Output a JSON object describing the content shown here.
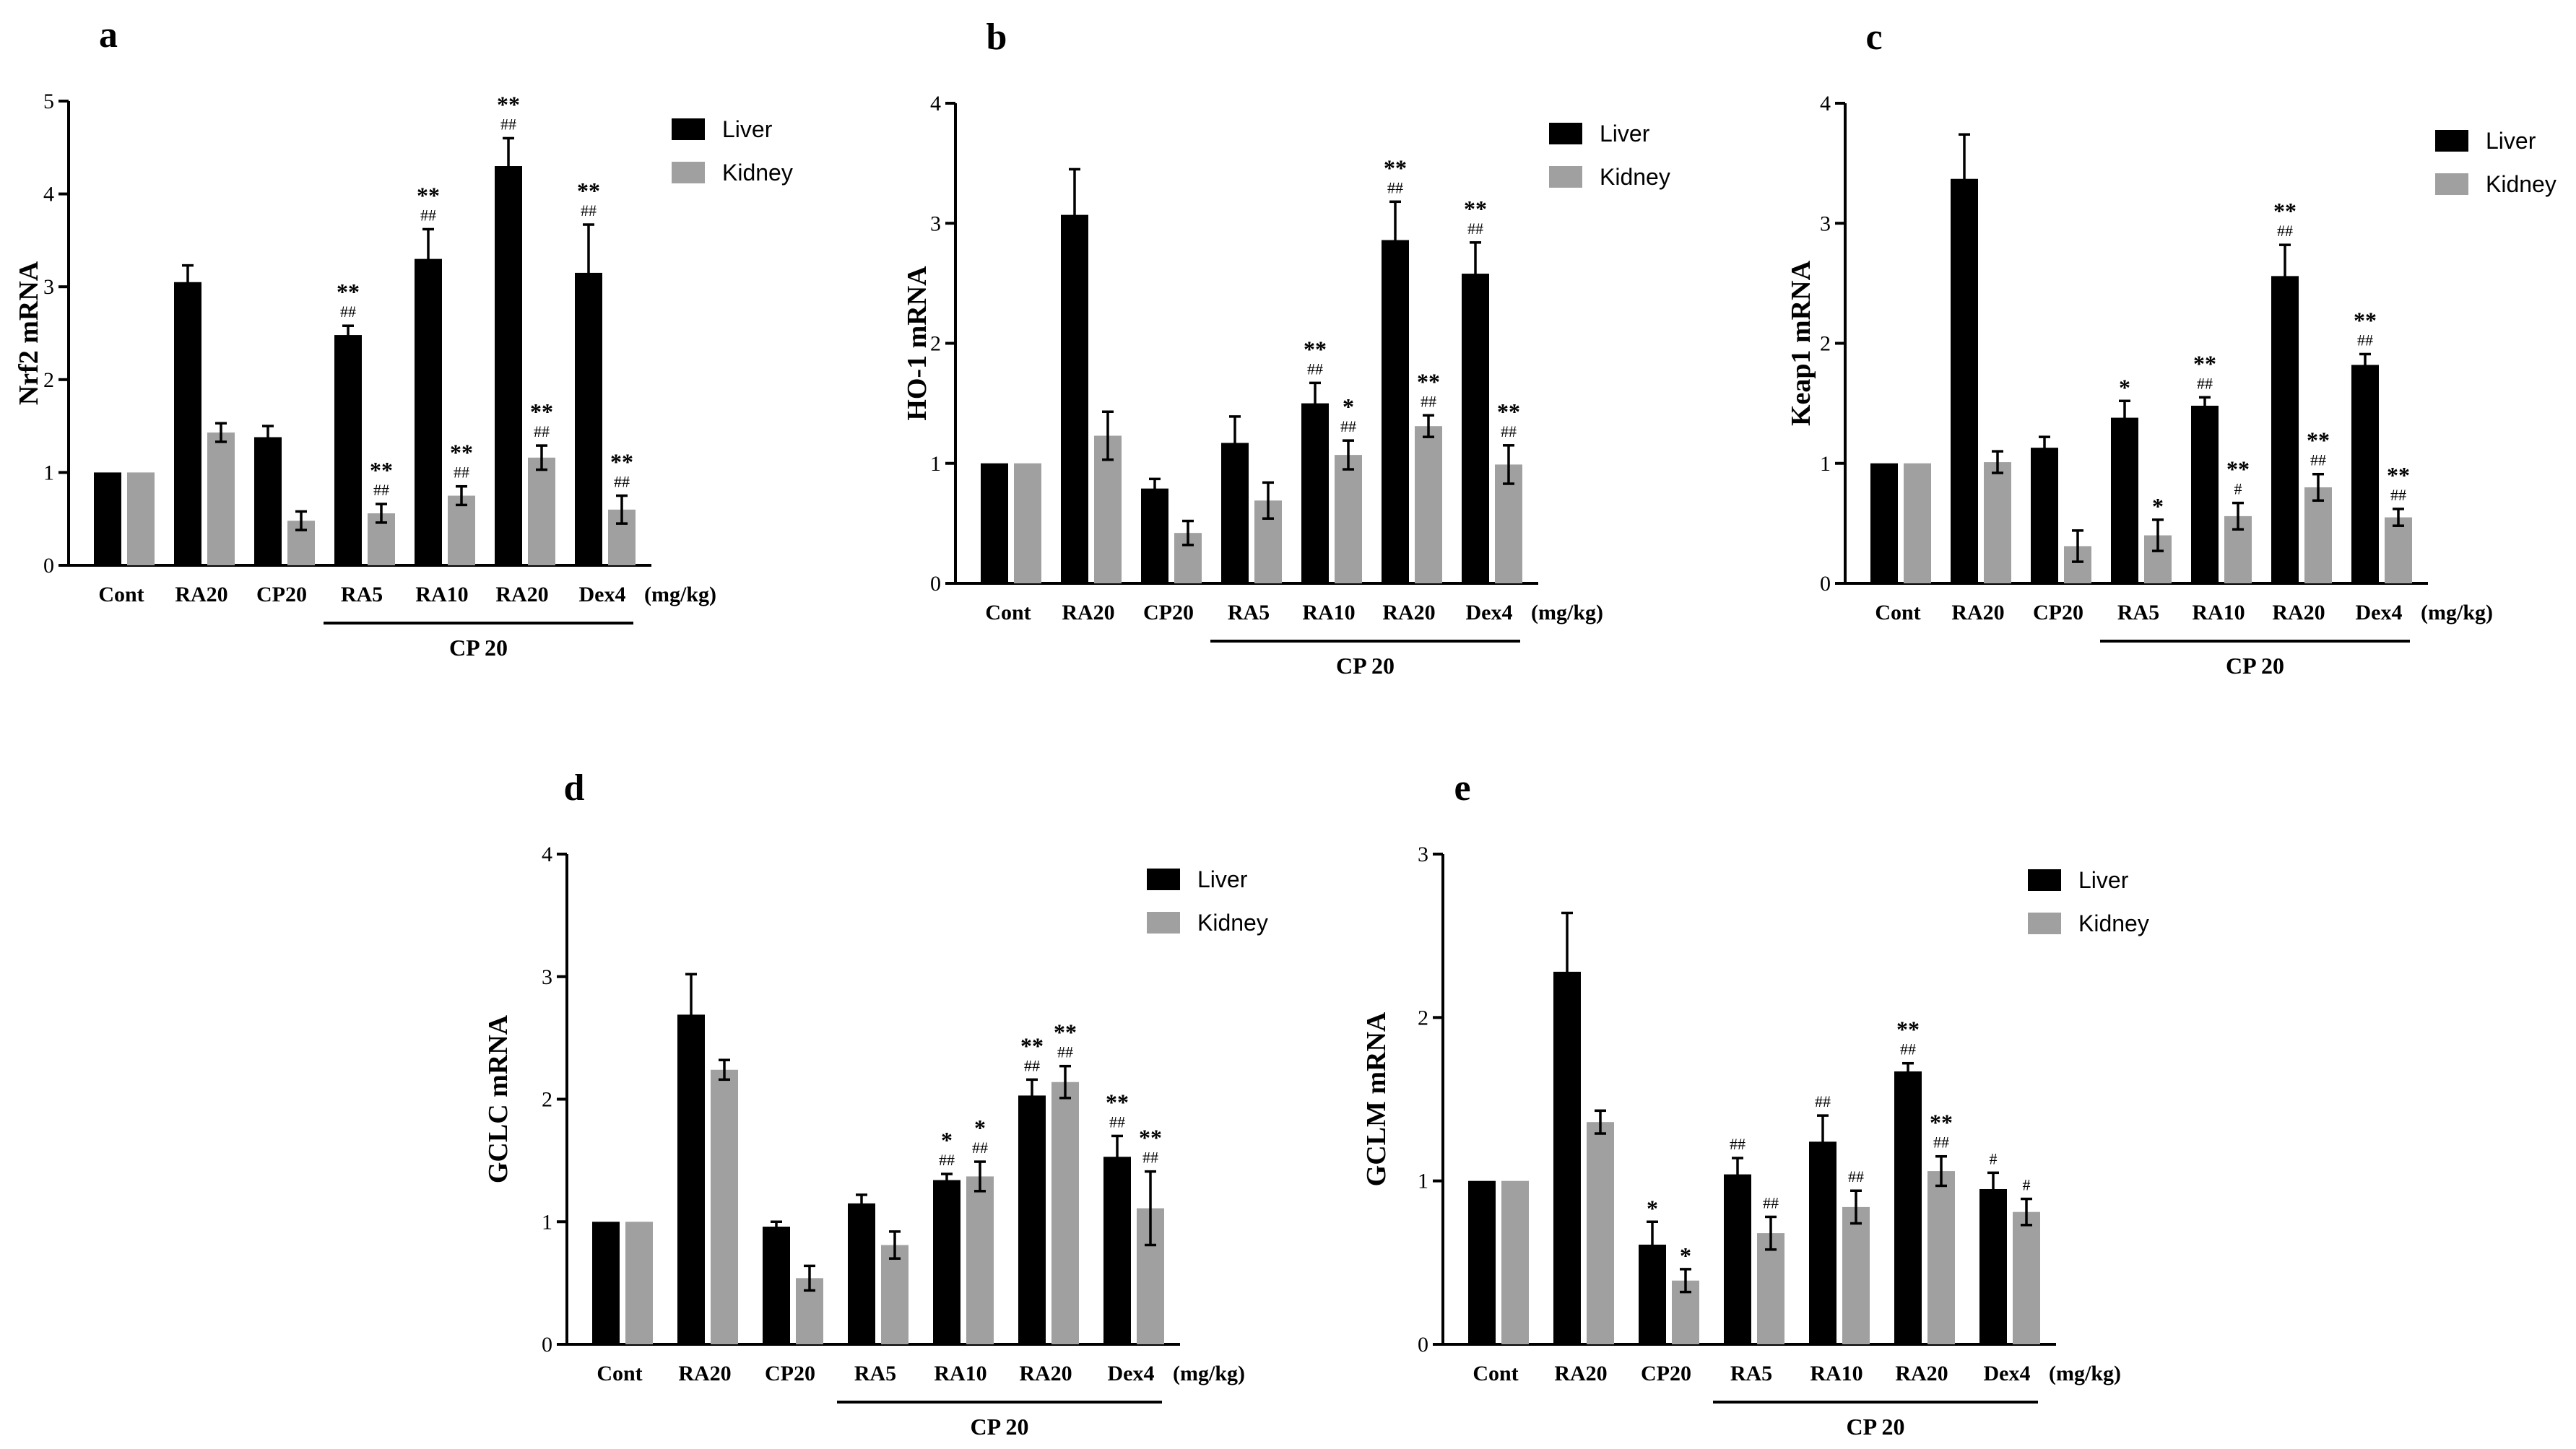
{
  "figure": {
    "legend": {
      "liver": "Liver",
      "kidney": "Kidney"
    },
    "colors": {
      "liver": "#000000",
      "kidney": "#a0a0a0"
    },
    "categories": [
      "Cont",
      "RA20",
      "CP20",
      "RA5",
      "RA10",
      "RA20",
      "Dex4"
    ],
    "unit_label": "(mg/kg)",
    "group_label": "CP 20"
  },
  "chart_data": [
    {
      "panel": "a",
      "type": "bar",
      "ylabel": "Nrf2 mRNA",
      "ylim": [
        0,
        5
      ],
      "yticks": [
        "0",
        "1",
        "2",
        "3",
        "4",
        "5"
      ],
      "categories": [
        "Cont",
        "RA20",
        "CP20",
        "RA5",
        "RA10",
        "RA20",
        "Dex4"
      ],
      "series": [
        {
          "name": "Liver",
          "values": [
            1.0,
            3.05,
            1.38,
            2.48,
            3.3,
            4.3,
            3.15
          ],
          "errors": [
            0,
            0.18,
            0.12,
            0.1,
            0.32,
            0.3,
            0.52
          ],
          "annotations": [
            [
              "",
              ""
            ],
            [
              "",
              ""
            ],
            [
              "",
              ""
            ],
            [
              "**",
              "##"
            ],
            [
              "**",
              "##"
            ],
            [
              "**",
              "##"
            ],
            [
              "**",
              "##"
            ]
          ]
        },
        {
          "name": "Kidney",
          "values": [
            1.0,
            1.43,
            0.48,
            0.56,
            0.75,
            1.16,
            0.6
          ],
          "errors": [
            0,
            0.1,
            0.1,
            0.1,
            0.1,
            0.13,
            0.15
          ],
          "annotations": [
            [
              "",
              ""
            ],
            [
              "",
              ""
            ],
            [
              "",
              ""
            ],
            [
              "**",
              "##"
            ],
            [
              "**",
              "##"
            ],
            [
              "**",
              "##"
            ],
            [
              "**",
              "##"
            ]
          ]
        }
      ]
    },
    {
      "panel": "b",
      "type": "bar",
      "ylabel": "HO-1 mRNA",
      "ylim": [
        0,
        4
      ],
      "yticks": [
        "0",
        "1",
        "2",
        "3",
        "4"
      ],
      "categories": [
        "Cont",
        "RA20",
        "CP20",
        "RA5",
        "RA10",
        "RA20",
        "Dex4"
      ],
      "series": [
        {
          "name": "Liver",
          "values": [
            1.0,
            3.07,
            0.79,
            1.17,
            1.5,
            2.86,
            2.58
          ],
          "errors": [
            0,
            0.38,
            0.08,
            0.22,
            0.17,
            0.32,
            0.26
          ],
          "annotations": [
            [
              "",
              ""
            ],
            [
              "",
              ""
            ],
            [
              "",
              ""
            ],
            [
              "",
              ""
            ],
            [
              "**",
              "##"
            ],
            [
              "**",
              "##"
            ],
            [
              "**",
              "##"
            ]
          ]
        },
        {
          "name": "Kidney",
          "values": [
            1.0,
            1.23,
            0.42,
            0.69,
            1.07,
            1.31,
            0.99
          ],
          "errors": [
            0,
            0.2,
            0.1,
            0.15,
            0.12,
            0.09,
            0.16
          ],
          "annotations": [
            [
              "",
              ""
            ],
            [
              "",
              ""
            ],
            [
              "",
              ""
            ],
            [
              "",
              ""
            ],
            [
              "*",
              "##"
            ],
            [
              "**",
              "##"
            ],
            [
              "**",
              "##"
            ]
          ]
        }
      ]
    },
    {
      "panel": "c",
      "type": "bar",
      "ylabel": "Keap1 mRNA",
      "ylim": [
        0,
        4
      ],
      "yticks": [
        "0",
        "1",
        "2",
        "3",
        "4"
      ],
      "categories": [
        "Cont",
        "RA20",
        "CP20",
        "RA5",
        "RA10",
        "RA20",
        "Dex4"
      ],
      "series": [
        {
          "name": "Liver",
          "values": [
            1.0,
            3.37,
            1.13,
            1.38,
            1.48,
            2.56,
            1.82
          ],
          "errors": [
            0,
            0.37,
            0.09,
            0.14,
            0.07,
            0.26,
            0.09
          ],
          "annotations": [
            [
              "",
              ""
            ],
            [
              "",
              ""
            ],
            [
              "",
              ""
            ],
            [
              "*",
              ""
            ],
            [
              "**",
              "##"
            ],
            [
              "**",
              "##"
            ],
            [
              "**",
              "##"
            ]
          ]
        },
        {
          "name": "Kidney",
          "values": [
            1.0,
            1.01,
            0.31,
            0.4,
            0.56,
            0.8,
            0.55
          ],
          "errors": [
            0,
            0.09,
            0.13,
            0.13,
            0.11,
            0.11,
            0.07
          ],
          "annotations": [
            [
              "",
              ""
            ],
            [
              "",
              ""
            ],
            [
              "",
              ""
            ],
            [
              "*",
              ""
            ],
            [
              "**",
              "#"
            ],
            [
              "**",
              "##"
            ],
            [
              "**",
              "##"
            ]
          ]
        }
      ]
    },
    {
      "panel": "d",
      "type": "bar",
      "ylabel": "GCLC mRNA",
      "ylim": [
        0,
        4
      ],
      "yticks": [
        "0",
        "1",
        "2",
        "3",
        "4"
      ],
      "categories": [
        "Cont",
        "RA20",
        "CP20",
        "RA5",
        "RA10",
        "RA20",
        "Dex4"
      ],
      "series": [
        {
          "name": "Liver",
          "values": [
            1.0,
            2.69,
            0.96,
            1.15,
            1.34,
            2.03,
            1.53
          ],
          "errors": [
            0,
            0.33,
            0.04,
            0.07,
            0.05,
            0.13,
            0.17
          ],
          "annotations": [
            [
              "",
              ""
            ],
            [
              "",
              ""
            ],
            [
              "",
              ""
            ],
            [
              "",
              ""
            ],
            [
              "*",
              "##"
            ],
            [
              "**",
              "##"
            ],
            [
              "**",
              "##"
            ]
          ]
        },
        {
          "name": "Kidney",
          "values": [
            1.0,
            2.24,
            0.54,
            0.81,
            1.37,
            2.14,
            1.11
          ],
          "errors": [
            0,
            0.08,
            0.1,
            0.11,
            0.12,
            0.13,
            0.3
          ],
          "annotations": [
            [
              "",
              ""
            ],
            [
              "",
              ""
            ],
            [
              "",
              ""
            ],
            [
              "",
              ""
            ],
            [
              "*",
              "##"
            ],
            [
              "**",
              "##"
            ],
            [
              "**",
              "##"
            ]
          ]
        }
      ]
    },
    {
      "panel": "e",
      "type": "bar",
      "ylabel": "GCLM mRNA",
      "ylim": [
        0,
        3
      ],
      "yticks": [
        "0",
        "1",
        "2",
        "3"
      ],
      "categories": [
        "Cont",
        "RA20",
        "CP20",
        "RA5",
        "RA10",
        "RA20",
        "Dex4"
      ],
      "series": [
        {
          "name": "Liver",
          "values": [
            1.0,
            2.28,
            0.61,
            1.04,
            1.24,
            1.67,
            0.95
          ],
          "errors": [
            0,
            0.36,
            0.14,
            0.1,
            0.16,
            0.05,
            0.1
          ],
          "annotations": [
            [
              "",
              ""
            ],
            [
              "",
              ""
            ],
            [
              "*",
              ""
            ],
            [
              "",
              "##"
            ],
            [
              "",
              "##"
            ],
            [
              "**",
              "##"
            ],
            [
              "",
              "#"
            ]
          ]
        },
        {
          "name": "Kidney",
          "values": [
            1.0,
            1.36,
            0.39,
            0.68,
            0.84,
            1.06,
            0.81
          ],
          "errors": [
            0,
            0.07,
            0.07,
            0.1,
            0.1,
            0.09,
            0.08
          ],
          "annotations": [
            [
              "",
              ""
            ],
            [
              "",
              ""
            ],
            [
              "*",
              ""
            ],
            [
              "",
              "##"
            ],
            [
              "",
              "##"
            ],
            [
              "**",
              "##"
            ],
            [
              "",
              "#"
            ]
          ]
        }
      ]
    }
  ]
}
